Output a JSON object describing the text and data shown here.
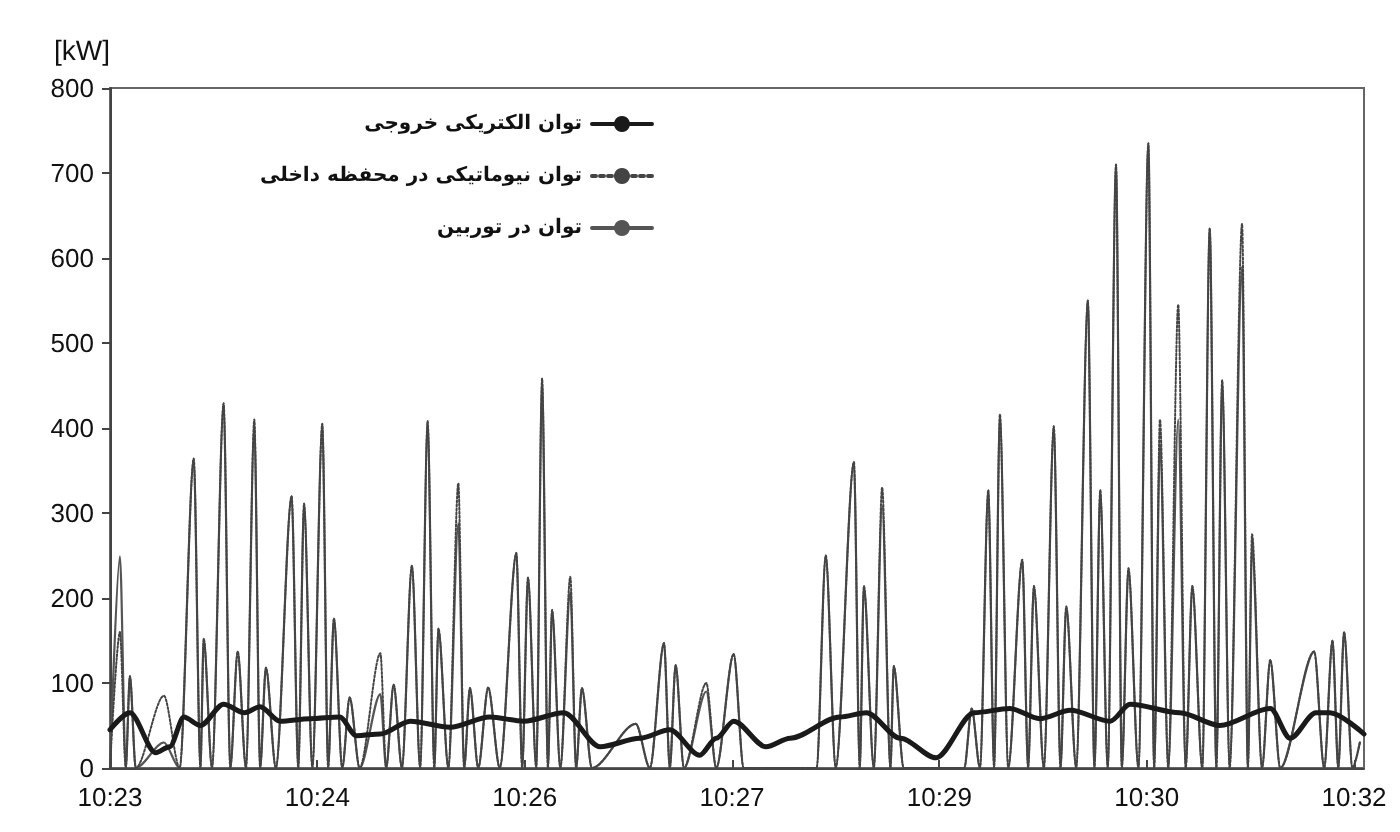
{
  "chart_data": {
    "type": "line",
    "ylabel": "[kW]",
    "legend": "top left",
    "grid": false,
    "marker": "none",
    "xlim": [
      10.3833,
      10.5345
    ],
    "ylim": [
      0,
      800
    ],
    "xticks": [
      {
        "value": 10.3833,
        "label": "10:23"
      },
      {
        "value": 10.4083,
        "label": "10:24"
      },
      {
        "value": 10.4333,
        "label": "10:26"
      },
      {
        "value": 10.4583,
        "label": "10:27"
      },
      {
        "value": 10.4833,
        "label": "10:29"
      },
      {
        "value": 10.5083,
        "label": "10:30"
      },
      {
        "value": 10.5333,
        "label": "10:32"
      }
    ],
    "yticks": [
      0,
      100,
      200,
      300,
      400,
      500,
      600,
      700,
      800
    ],
    "x": [
      10.3833,
      10.3845,
      10.3852,
      10.3857,
      10.3864,
      10.3898,
      10.3917,
      10.3934,
      10.3942,
      10.3946,
      10.3956,
      10.397,
      10.3978,
      10.3987,
      10.3997,
      10.4007,
      10.4014,
      10.4021,
      10.4033,
      10.4052,
      10.406,
      10.4067,
      10.4077,
      10.4089,
      10.4096,
      10.4103,
      10.4113,
      10.4122,
      10.4134,
      10.4159,
      10.4166,
      10.4175,
      10.4185,
      10.4197,
      10.4207,
      10.4216,
      10.4224,
      10.4229,
      10.4241,
      10.4253,
      10.426,
      10.4267,
      10.4277,
      10.4289,
      10.4303,
      10.4323,
      10.433,
      10.4337,
      10.4347,
      10.4354,
      10.4361,
      10.4366,
      10.4376,
      10.4388,
      10.4395,
      10.4402,
      10.4414,
      10.4467,
      10.4484,
      10.4501,
      10.4508,
      10.4515,
      10.4525,
      10.4552,
      10.4564,
      10.4585,
      10.4597,
      10.4685,
      10.4696,
      10.4708,
      10.473,
      10.4737,
      10.4742,
      10.4754,
      10.4764,
      10.4774,
      10.4778,
      10.479,
      10.4863,
      10.4872,
      10.4882,
      10.4892,
      10.4899,
      10.4906,
      10.4916,
      10.4933,
      10.494,
      10.4947,
      10.4959,
      10.4971,
      10.4979,
      10.4986,
      10.4998,
      10.5012,
      10.502,
      10.5027,
      10.5036,
      10.5046,
      10.5053,
      10.5061,
      10.5073,
      10.5085,
      10.5092,
      10.5099,
      10.5109,
      10.5121,
      10.513,
      10.5138,
      10.515,
      10.5159,
      10.5167,
      10.5174,
      10.5183,
      10.5198,
      10.5205,
      10.521,
      10.5222,
      10.5232,
      10.5244,
      10.5285,
      10.5297,
      10.5307,
      10.5314,
      10.5321,
      10.5331,
      10.534
    ],
    "series": [
      {
        "name": "توان الکتریکی خروجی",
        "color": "#1a1a1a",
        "line_style": "solid",
        "x": [
          10.3833,
          10.3857,
          10.3888,
          10.3905,
          10.3922,
          10.3942,
          10.397,
          10.3995,
          10.4014,
          10.4038,
          10.4074,
          10.411,
          10.413,
          10.4159,
          10.4195,
          10.4243,
          10.4291,
          10.4332,
          10.438,
          10.4424,
          10.4472,
          10.4508,
          10.4544,
          10.4564,
          10.4585,
          10.4624,
          10.4653,
          10.4713,
          10.4745,
          10.4786,
          10.4829,
          10.4875,
          10.4918,
          10.4954,
          10.4991,
          10.5039,
          10.5063,
          10.5123,
          10.5171,
          10.5232,
          10.5256,
          10.5287,
          10.5304,
          10.5345
        ],
        "values": [
          45,
          65,
          18,
          25,
          60,
          50,
          75,
          65,
          72,
          55,
          58,
          60,
          38,
          40,
          55,
          48,
          60,
          55,
          65,
          25,
          35,
          45,
          15,
          35,
          55,
          25,
          35,
          60,
          65,
          35,
          12,
          65,
          70,
          58,
          68,
          55,
          75,
          65,
          50,
          70,
          35,
          65,
          65,
          40
        ]
      },
      {
        "name": "توان نیوماتیکی در محفظه داخلی",
        "color": "#444444",
        "line_style": "dotted",
        "values": [
          0,
          160,
          0,
          108,
          0,
          85,
          0,
          364,
          0,
          152,
          0,
          429,
          0,
          137,
          0,
          410,
          0,
          118,
          0,
          320,
          0,
          311,
          0,
          405,
          0,
          176,
          0,
          83,
          0,
          135,
          0,
          98,
          0,
          238,
          0,
          408,
          0,
          164,
          0,
          335,
          0,
          94,
          0,
          95,
          0,
          253,
          0,
          224,
          0,
          458,
          0,
          186,
          0,
          225,
          0,
          94,
          0,
          52,
          0,
          147,
          0,
          121,
          0,
          100,
          0,
          134,
          0,
          0,
          250,
          0,
          360,
          0,
          214,
          0,
          330,
          0,
          120,
          0,
          0,
          70,
          0,
          327,
          0,
          416,
          0,
          245,
          0,
          214,
          0,
          402,
          0,
          190,
          0,
          550,
          0,
          327,
          0,
          710,
          0,
          235,
          0,
          735,
          0,
          410,
          0,
          545,
          0,
          214,
          0,
          635,
          0,
          456,
          0,
          640,
          0,
          275,
          0,
          127,
          0,
          137,
          0,
          150,
          0,
          160,
          0,
          30
        ]
      },
      {
        "name": "توان در توربین",
        "color": "#555555",
        "line_style": "solid",
        "values": [
          0,
          249,
          0,
          108,
          0,
          30,
          0,
          364,
          0,
          152,
          0,
          429,
          0,
          137,
          0,
          404,
          0,
          118,
          0,
          320,
          0,
          311,
          0,
          405,
          0,
          176,
          0,
          83,
          0,
          87,
          0,
          98,
          0,
          238,
          0,
          408,
          0,
          164,
          0,
          288,
          0,
          94,
          0,
          94,
          0,
          253,
          0,
          224,
          0,
          458,
          0,
          186,
          0,
          207,
          0,
          94,
          0,
          52,
          0,
          147,
          0,
          121,
          0,
          90,
          0,
          134,
          0,
          0,
          250,
          0,
          360,
          0,
          214,
          0,
          308,
          0,
          120,
          0,
          0,
          70,
          0,
          327,
          0,
          416,
          0,
          245,
          0,
          214,
          0,
          402,
          0,
          190,
          0,
          550,
          0,
          327,
          0,
          710,
          0,
          235,
          0,
          735,
          0,
          381,
          0,
          410,
          0,
          214,
          0,
          635,
          0,
          456,
          0,
          590,
          0,
          260,
          0,
          127,
          0,
          137,
          0,
          150,
          0,
          160,
          0,
          30
        ]
      }
    ]
  }
}
